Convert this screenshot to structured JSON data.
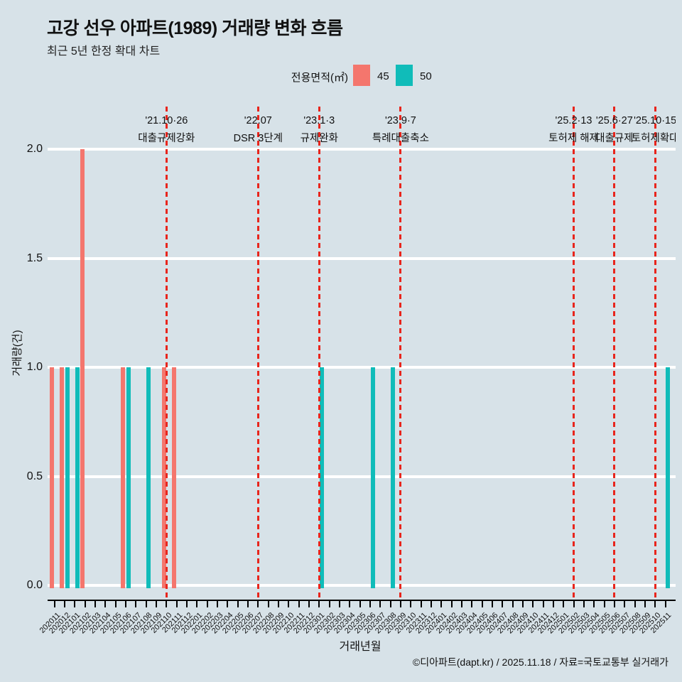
{
  "header": {
    "title": "고강 선우 아파트(1989) 거래량 변화 흐름",
    "subtitle": "최근 5년 한정 확대 차트"
  },
  "legend": {
    "label": "전용면적(㎡)",
    "items": [
      {
        "name": "45",
        "color": "#f4766d"
      },
      {
        "name": "50",
        "color": "#10bcb9"
      }
    ]
  },
  "footer": {
    "credit": "©디아파트(dapt.kr) / 2025.11.18 / 자료=국토교통부 실거래가"
  },
  "colors": {
    "background": "#d7e2e8",
    "gridline": "#ffffff",
    "axis": "#000000",
    "series_45": "#f4766d",
    "series_50": "#10bcb9",
    "event_line": "#e8251c"
  },
  "chart_data": {
    "type": "bar",
    "title": "고강 선우 아파트(1989) 거래량 변화 흐름",
    "subtitle": "최근 5년 한정 확대 차트",
    "xlabel": "거래년월",
    "ylabel": "거래량(건)",
    "ylim": [
      0,
      2.0
    ],
    "grid": true,
    "legend_position": "top",
    "yticks": [
      {
        "value": 0.0,
        "label": "0.0"
      },
      {
        "value": 0.5,
        "label": "0.5"
      },
      {
        "value": 1.0,
        "label": "1.0"
      },
      {
        "value": 1.5,
        "label": "1.5"
      },
      {
        "value": 2.0,
        "label": "2.0"
      }
    ],
    "categories": [
      "202011",
      "202012",
      "202101",
      "202102",
      "202103",
      "202104",
      "202105",
      "202106",
      "202107",
      "202108",
      "202109",
      "202110",
      "202111",
      "202112",
      "202201",
      "202202",
      "202203",
      "202204",
      "202205",
      "202206",
      "202207",
      "202208",
      "202209",
      "202210",
      "202211",
      "202212",
      "202301",
      "202302",
      "202303",
      "202304",
      "202305",
      "202306",
      "202307",
      "202308",
      "202309",
      "202310",
      "202311",
      "202312",
      "202401",
      "202402",
      "202403",
      "202404",
      "202405",
      "202406",
      "202407",
      "202408",
      "202409",
      "202410",
      "202411",
      "202412",
      "202501",
      "202502",
      "202503",
      "202504",
      "202505",
      "202506",
      "202507",
      "202508",
      "202509",
      "202510",
      "202511"
    ],
    "series": [
      {
        "name": "45",
        "color": "#f4766d",
        "points": [
          {
            "month": "202011",
            "count": 1
          },
          {
            "month": "202012",
            "count": 1
          },
          {
            "month": "202102",
            "count": 2
          },
          {
            "month": "202106",
            "count": 1
          },
          {
            "month": "202110",
            "count": 1
          },
          {
            "month": "202111",
            "count": 1
          }
        ]
      },
      {
        "name": "50",
        "color": "#10bcb9",
        "points": [
          {
            "month": "202012",
            "count": 1
          },
          {
            "month": "202101",
            "count": 1
          },
          {
            "month": "202106",
            "count": 1
          },
          {
            "month": "202108",
            "count": 1
          },
          {
            "month": "202301",
            "count": 1
          },
          {
            "month": "202306",
            "count": 1
          },
          {
            "month": "202308",
            "count": 1
          },
          {
            "month": "202511",
            "count": 1
          }
        ]
      }
    ],
    "event_lines": [
      {
        "date": "'21.10·26",
        "label": "대출규제강화",
        "month": "202110"
      },
      {
        "date": "'22.07",
        "label": "DSR 3단계",
        "month": "202207"
      },
      {
        "date": "'23.1·3",
        "label": "규제완화",
        "month": "202301"
      },
      {
        "date": "'23.9·7",
        "label": "특례대출축소",
        "month": "202309"
      },
      {
        "date": "'25.2·13",
        "label": "토허제 해제",
        "month": "202502"
      },
      {
        "date": "'25.6·27",
        "label": "대출규제",
        "month": "202506"
      },
      {
        "date": "'25.10·15",
        "label": "토허제확대",
        "month": "202510"
      }
    ]
  }
}
